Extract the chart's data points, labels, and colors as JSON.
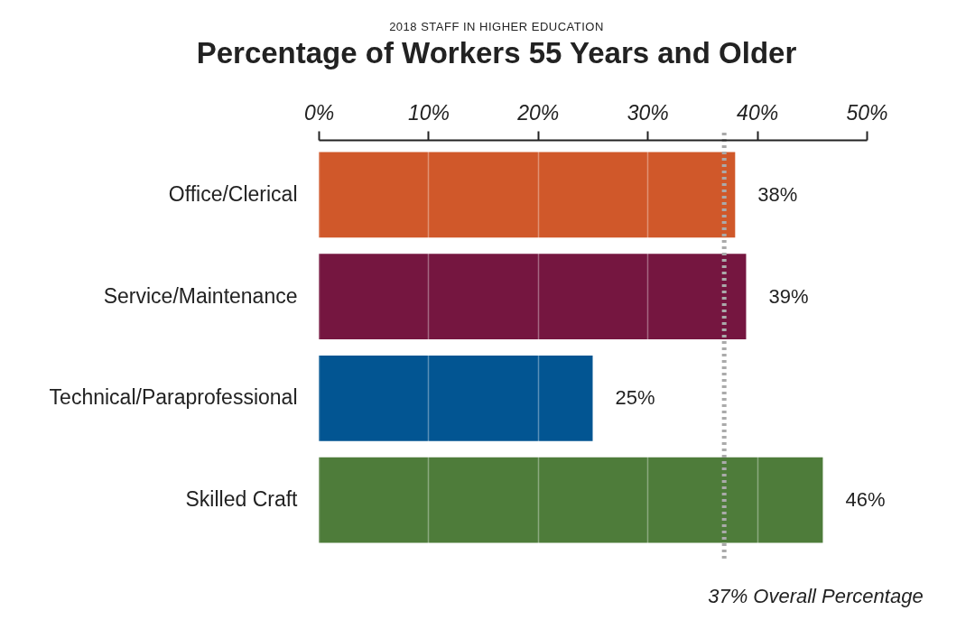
{
  "chart_data": {
    "type": "bar",
    "orientation": "horizontal",
    "subtitle": "2018 STAFF IN HIGHER EDUCATION",
    "title": "Percentage of Workers 55 Years and Older",
    "categories": [
      "Office/Clerical",
      "Service/Maintenance",
      "Technical/Paraprofessional",
      "Skilled Craft"
    ],
    "values": [
      38,
      39,
      25,
      46
    ],
    "colors": [
      "#d0582a",
      "#751640",
      "#025592",
      "#4e7c3a"
    ],
    "value_labels": [
      "38%",
      "39%",
      "25%",
      "46%"
    ],
    "xlim": [
      0,
      50
    ],
    "xticks": [
      {
        "value": 0,
        "label": "0%"
      },
      {
        "value": 10,
        "label": "10%"
      },
      {
        "value": 20,
        "label": "20%"
      },
      {
        "value": 30,
        "label": "30%"
      },
      {
        "value": 40,
        "label": "40%"
      },
      {
        "value": 50,
        "label": "50%"
      }
    ],
    "ref_lines": [
      {
        "axis": "x",
        "value": 37,
        "label": "37% Overall Percentage",
        "color": "#aaaaaa",
        "line_style": "dotted"
      }
    ],
    "grid": "x"
  }
}
